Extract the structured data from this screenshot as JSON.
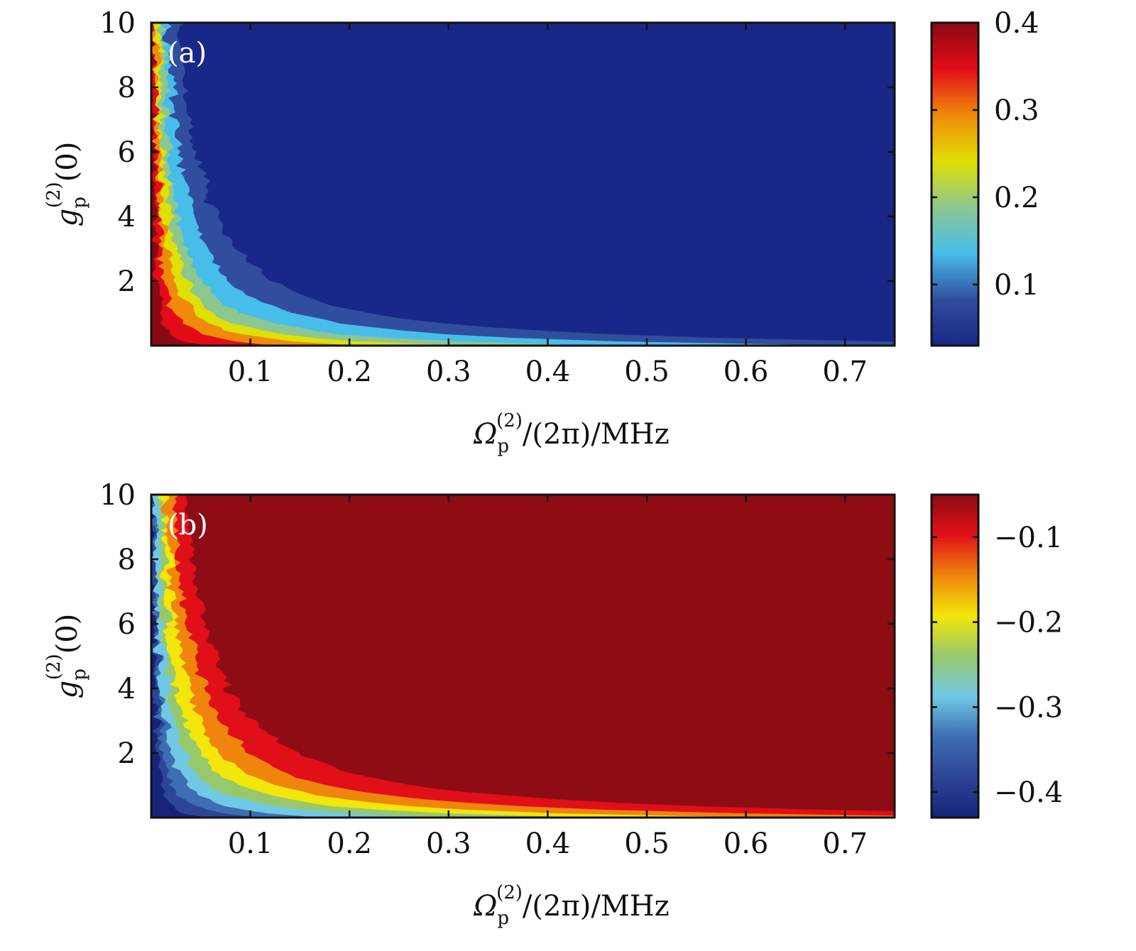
{
  "chart_data": [
    {
      "type": "heatmap",
      "panel_label": "(a)",
      "xlabel": {
        "main": "Ω",
        "sub": "p",
        "sup": "(2)",
        "rest": "/(2π)/MHz"
      },
      "ylabel": {
        "main": "g",
        "sub": "p",
        "sup": "(2)",
        "rest": "(0)"
      },
      "xlim": [
        0,
        0.75
      ],
      "ylim": [
        0,
        10
      ],
      "x_ticks": [
        0.1,
        0.2,
        0.3,
        0.4,
        0.5,
        0.6,
        0.7
      ],
      "x_tick_labels": [
        "0.1",
        "0.2",
        "0.3",
        "0.4",
        "0.5",
        "0.6",
        "0.7"
      ],
      "y_ticks": [
        2,
        4,
        6,
        8,
        10
      ],
      "y_tick_labels": [
        "2",
        "4",
        "6",
        "8",
        "10"
      ],
      "colorbar": {
        "range": [
          0.03,
          0.4
        ],
        "ticks": [
          0.1,
          0.2,
          0.3,
          0.4
        ],
        "tick_labels": [
          "0.1",
          "0.2",
          "0.3",
          "0.4"
        ]
      },
      "contour_levels": [
        {
          "level": 0.4,
          "color": "#8a0a14"
        },
        {
          "level": 0.35,
          "color": "#e30b18"
        },
        {
          "level": 0.3,
          "color": "#f08a0a"
        },
        {
          "level": 0.25,
          "color": "#dfe003"
        },
        {
          "level": 0.2,
          "color": "#8dc790"
        },
        {
          "level": 0.15,
          "color": "#47bdea"
        },
        {
          "level": 0.1,
          "color": "#314e9e"
        },
        {
          "level": 0.05,
          "color": "#182888"
        }
      ],
      "level_boundaries_k": [
        0.3,
        0.7,
        1.2,
        1.8,
        2.6,
        4.0,
        6.2
      ]
    },
    {
      "type": "heatmap",
      "panel_label": "(b)",
      "xlabel": {
        "main": "Ω",
        "sub": "p",
        "sup": "(2)",
        "rest": "/(2π)/MHz"
      },
      "ylabel": {
        "main": "g",
        "sub": "p",
        "sup": "(2)",
        "rest": "(0)"
      },
      "xlim": [
        0,
        0.75
      ],
      "ylim": [
        0,
        10
      ],
      "x_ticks": [
        0.1,
        0.2,
        0.3,
        0.4,
        0.5,
        0.6,
        0.7
      ],
      "x_tick_labels": [
        "0.1",
        "0.2",
        "0.3",
        "0.4",
        "0.5",
        "0.6",
        "0.7"
      ],
      "y_ticks": [
        2,
        4,
        6,
        8,
        10
      ],
      "y_tick_labels": [
        "2",
        "4",
        "6",
        "8",
        "10"
      ],
      "colorbar": {
        "range": [
          -0.43,
          -0.05
        ],
        "ticks": [
          -0.1,
          -0.2,
          -0.3,
          -0.4
        ],
        "tick_labels": [
          "−0.1",
          "−0.2",
          "−0.3",
          "−0.4"
        ]
      },
      "contour_levels": [
        {
          "level": -0.42,
          "color": "#172479"
        },
        {
          "level": -0.38,
          "color": "#2c4597"
        },
        {
          "level": -0.34,
          "color": "#3d6db2"
        },
        {
          "level": -0.3,
          "color": "#71c8e4"
        },
        {
          "level": -0.26,
          "color": "#97c96c"
        },
        {
          "level": -0.2,
          "color": "#f2e60a"
        },
        {
          "level": -0.14,
          "color": "#ef850c"
        },
        {
          "level": -0.1,
          "color": "#e00f18"
        },
        {
          "level": -0.06,
          "color": "#8e0c14"
        }
      ],
      "level_boundaries_k": [
        0.3,
        0.6,
        1.0,
        1.7,
        2.5,
        3.5,
        5.0,
        7.4
      ]
    }
  ]
}
